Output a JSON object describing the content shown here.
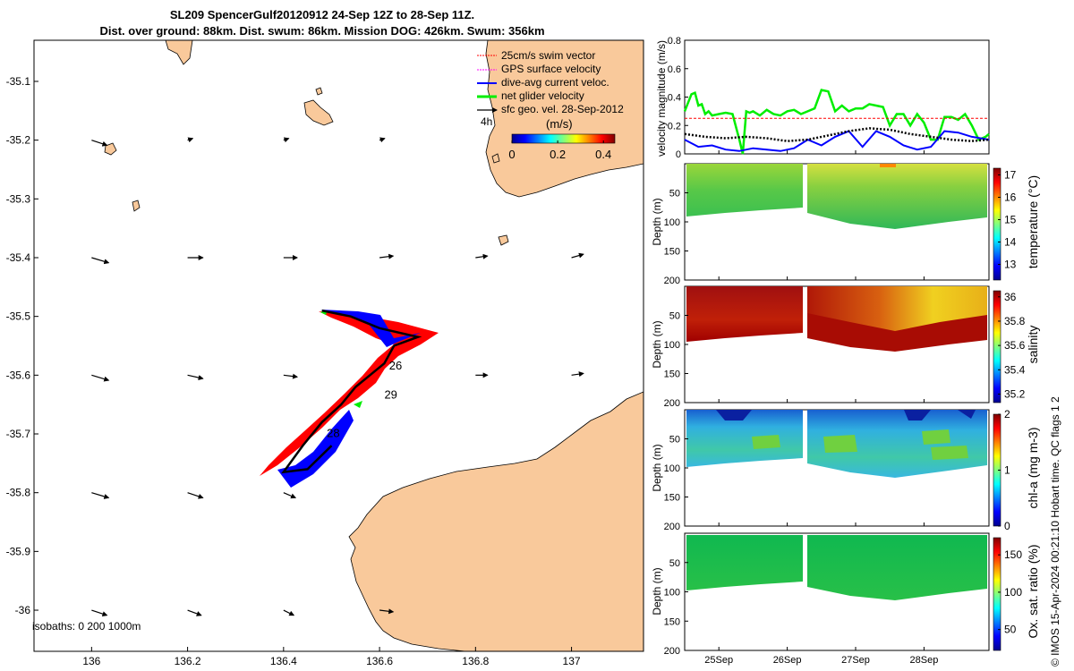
{
  "title_line1": "SL209 SpencerGulf20120912 24-Sep 12Z to 28-Sep 11Z.",
  "title_line2": "Dist. over ground: 88km. Dist. swum: 86km. Mission DOG: 426km. Swum: 356km",
  "footer": "© IMOS 15-Apr-2024 00:21:10 Hobart time. QC flags 1  2",
  "colors": {
    "land": "#f9c99b",
    "swim": "#ff0000",
    "gps": "#ff00ff",
    "current": "#0000ff",
    "net": "#00ee00",
    "geo": "#000000"
  },
  "chart_data": [
    {
      "type": "map",
      "xlim": [
        135.88,
        137.15
      ],
      "ylim": [
        -36.07,
        -35.03
      ],
      "xticks": [
        "136",
        "136.2",
        "136.4",
        "136.6",
        "136.8",
        "137"
      ],
      "yticks": [
        "-35.1",
        "-35.2",
        "-35.3",
        "-35.4",
        "-35.5",
        "-35.6",
        "-35.7",
        "-35.8",
        "-35.9",
        "-36"
      ],
      "legend": [
        "25cm/s swim vector",
        "GPS surface velocity",
        "dive-avg current veloc.",
        "net glider velocity",
        "sfc geo. vel. 28-Sep-2012"
      ],
      "legend_position": "top-right",
      "time_label": "4h",
      "colorbar_label": "(m/s)",
      "colorbar_ticks": [
        "0",
        "0.2",
        "0.4"
      ],
      "colorbar_range": [
        0,
        0.45
      ],
      "isobaths_label": "isobaths: 0   200  1000m",
      "track_day_labels": [
        {
          "text": "26",
          "lon": 136.62,
          "lat": -35.59
        },
        {
          "text": "29",
          "lon": 136.61,
          "lat": -35.64
        },
        {
          "text": "28",
          "lon": 136.49,
          "lat": -35.705
        }
      ],
      "glider_track": [
        {
          "lon": 136.48,
          "lat": -35.49
        },
        {
          "lon": 136.54,
          "lat": -35.5
        },
        {
          "lon": 136.6,
          "lat": -35.52
        },
        {
          "lon": 136.68,
          "lat": -35.535
        },
        {
          "lon": 136.63,
          "lat": -35.55
        },
        {
          "lon": 136.61,
          "lat": -35.58
        },
        {
          "lon": 136.58,
          "lat": -35.6
        },
        {
          "lon": 136.55,
          "lat": -35.62
        },
        {
          "lon": 136.52,
          "lat": -35.65
        },
        {
          "lon": 136.48,
          "lat": -35.68
        },
        {
          "lon": 136.44,
          "lat": -35.72
        },
        {
          "lon": 136.4,
          "lat": -35.765
        },
        {
          "lon": 136.45,
          "lat": -35.76
        },
        {
          "lon": 136.5,
          "lat": -35.72
        }
      ],
      "geo_velocity_vectors": [
        {
          "lon": 136.0,
          "lat": -35.2,
          "u": 0.09,
          "v": -0.03
        },
        {
          "lon": 136.2,
          "lat": -35.2,
          "u": 0.03,
          "v": 0.01
        },
        {
          "lon": 136.4,
          "lat": -35.2,
          "u": 0.03,
          "v": 0.01
        },
        {
          "lon": 136.6,
          "lat": -35.2,
          "u": 0.03,
          "v": 0.01
        },
        {
          "lon": 136.0,
          "lat": -35.4,
          "u": 0.1,
          "v": -0.03
        },
        {
          "lon": 136.2,
          "lat": -35.4,
          "u": 0.09,
          "v": 0.0
        },
        {
          "lon": 136.4,
          "lat": -35.4,
          "u": 0.08,
          "v": 0.0
        },
        {
          "lon": 136.6,
          "lat": -35.4,
          "u": 0.08,
          "v": 0.01
        },
        {
          "lon": 136.8,
          "lat": -35.4,
          "u": 0.07,
          "v": 0.01
        },
        {
          "lon": 137.0,
          "lat": -35.4,
          "u": 0.07,
          "v": 0.02
        },
        {
          "lon": 136.0,
          "lat": -35.6,
          "u": 0.1,
          "v": -0.03
        },
        {
          "lon": 136.2,
          "lat": -35.6,
          "u": 0.09,
          "v": -0.02
        },
        {
          "lon": 136.4,
          "lat": -35.6,
          "u": 0.08,
          "v": -0.01
        },
        {
          "lon": 136.8,
          "lat": -35.6,
          "u": 0.07,
          "v": 0.0
        },
        {
          "lon": 137.0,
          "lat": -35.6,
          "u": 0.07,
          "v": 0.01
        },
        {
          "lon": 136.0,
          "lat": -35.8,
          "u": 0.1,
          "v": -0.03
        },
        {
          "lon": 136.2,
          "lat": -35.8,
          "u": 0.09,
          "v": -0.03
        },
        {
          "lon": 136.4,
          "lat": -35.8,
          "u": 0.07,
          "v": -0.03
        },
        {
          "lon": 136.0,
          "lat": -36.0,
          "u": 0.09,
          "v": -0.03
        },
        {
          "lon": 136.2,
          "lat": -36.0,
          "u": 0.08,
          "v": -0.03
        },
        {
          "lon": 136.4,
          "lat": -36.0,
          "u": 0.06,
          "v": -0.03
        },
        {
          "lon": 136.6,
          "lat": -36.0,
          "u": 0.08,
          "v": -0.01
        }
      ]
    },
    {
      "type": "line",
      "ylabel": "velocity magnitude (m/s)",
      "ylim": [
        0,
        0.8
      ],
      "yticks": [
        "0",
        "0.2",
        "0.4",
        "0.6",
        "0.8"
      ],
      "xlim": [
        24.5,
        28.95
      ],
      "series": [
        {
          "values_x": [
            24.5,
            24.6,
            24.65,
            24.7,
            24.75,
            24.8,
            24.85,
            24.9,
            25.0,
            25.1,
            25.2,
            25.3,
            25.35,
            25.4,
            25.45,
            25.5,
            25.6,
            25.7,
            25.8,
            25.9,
            26.0,
            26.1,
            26.2,
            26.3,
            26.4,
            26.5,
            26.6,
            26.7,
            26.8,
            26.9,
            27.0,
            27.1,
            27.2,
            27.3,
            27.4,
            27.5,
            27.6,
            27.7,
            27.8,
            27.9,
            28.0,
            28.1,
            28.2,
            28.3,
            28.4,
            28.5,
            28.6,
            28.7,
            28.8,
            28.9,
            28.95
          ],
          "values_y": [
            0.3,
            0.42,
            0.43,
            0.34,
            0.35,
            0.28,
            0.3,
            0.27,
            0.28,
            0.29,
            0.28,
            0.1,
            0.0,
            0.3,
            0.29,
            0.3,
            0.27,
            0.31,
            0.28,
            0.27,
            0.3,
            0.31,
            0.28,
            0.3,
            0.32,
            0.45,
            0.44,
            0.3,
            0.34,
            0.3,
            0.32,
            0.32,
            0.35,
            0.34,
            0.33,
            0.2,
            0.28,
            0.28,
            0.2,
            0.28,
            0.22,
            0.1,
            0.1,
            0.26,
            0.26,
            0.24,
            0.28,
            0.2,
            0.1,
            0.12,
            0.14
          ]
        },
        {
          "values_x": [
            24.5,
            24.7,
            24.9,
            25.1,
            25.3,
            25.5,
            25.7,
            25.9,
            26.1,
            26.3,
            26.5,
            26.7,
            26.9,
            27.1,
            27.3,
            27.5,
            27.7,
            27.9,
            28.1,
            28.3,
            28.5,
            28.7,
            28.95
          ],
          "values_y": [
            0.1,
            0.05,
            0.06,
            0.03,
            0.02,
            0.04,
            0.03,
            0.02,
            0.04,
            0.1,
            0.06,
            0.12,
            0.16,
            0.05,
            0.16,
            0.12,
            0.06,
            0.03,
            0.05,
            0.16,
            0.15,
            0.12,
            0.1
          ]
        },
        {
          "values_x": [
            24.5,
            24.8,
            25.1,
            25.4,
            25.7,
            26.0,
            26.3,
            26.6,
            26.9,
            27.2,
            27.5,
            27.8,
            28.1,
            28.4,
            28.7,
            28.95
          ],
          "values_y": [
            0.14,
            0.12,
            0.11,
            0.12,
            0.11,
            0.09,
            0.1,
            0.13,
            0.16,
            0.18,
            0.17,
            0.14,
            0.12,
            0.1,
            0.09,
            0.1
          ]
        },
        {
          "values_x": [
            24.5,
            28.95
          ],
          "values_y": [
            0.25,
            0.25
          ]
        }
      ]
    },
    {
      "type": "heatmap",
      "ylabel": "Depth (m)",
      "colorbar_label": "temperature (°C)",
      "colorbar_ticks": [
        "13",
        "14",
        "15",
        "16",
        "17"
      ],
      "colorbar_range": [
        12.3,
        17.3
      ],
      "yticks": [
        "50",
        "100",
        "150",
        "200"
      ]
    },
    {
      "type": "heatmap",
      "ylabel": "Depth (m)",
      "colorbar_label": "salinity",
      "colorbar_ticks": [
        "35.2",
        "35.4",
        "35.6",
        "35.8",
        "36"
      ],
      "colorbar_range": [
        35.13,
        36.05
      ],
      "yticks": [
        "50",
        "100",
        "150",
        "200"
      ]
    },
    {
      "type": "heatmap",
      "ylabel": "Depth (m)",
      "colorbar_label": "chl-a (mg m-3)",
      "colorbar_ticks": [
        "0",
        "1",
        "2"
      ],
      "colorbar_range": [
        0,
        2
      ],
      "yticks": [
        "50",
        "100",
        "150",
        "200"
      ]
    },
    {
      "type": "heatmap",
      "ylabel": "Depth (m)",
      "colorbar_label": "Ox. sat. ratio (%)",
      "colorbar_ticks": [
        "50",
        "100",
        "150"
      ],
      "colorbar_range": [
        22,
        173
      ],
      "yticks": [
        "50",
        "100",
        "150",
        "200"
      ],
      "xticks": [
        "25Sep",
        "26Sep",
        "27Sep",
        "28Sep"
      ]
    }
  ]
}
